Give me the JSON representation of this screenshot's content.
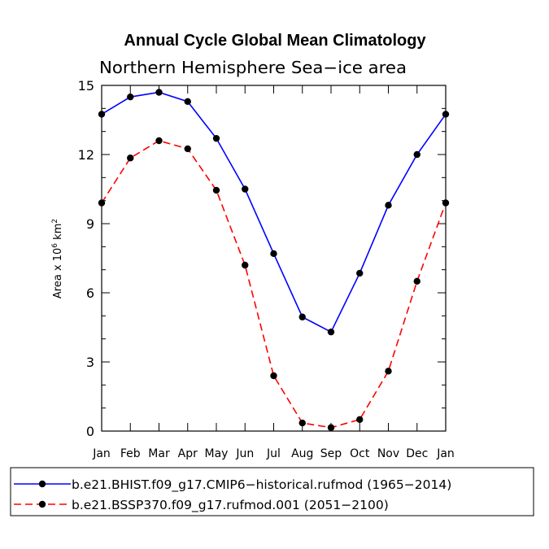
{
  "chart_data": {
    "type": "line",
    "title": "Annual Cycle Global Mean Climatology",
    "subtitle": "Northern Hemisphere Sea−ice area",
    "xlabel": "",
    "ylabel_prefix": "Area x 10",
    "ylabel_exp": "6",
    "ylabel_unit": " km",
    "ylabel_unit_exp": "2",
    "categories": [
      "Jan",
      "Feb",
      "Mar",
      "Apr",
      "May",
      "Jun",
      "Jul",
      "Aug",
      "Sep",
      "Oct",
      "Nov",
      "Dec",
      "Jan"
    ],
    "ylim": [
      0,
      15
    ],
    "yticks": [
      0,
      3,
      6,
      9,
      12,
      15
    ],
    "series": [
      {
        "name": "b.e21.BHIST.f09_g17.CMIP6−historical.rufmod (1965−2014)",
        "color": "#0000ff",
        "dash": "solid",
        "values": [
          13.75,
          14.5,
          14.7,
          14.3,
          12.7,
          10.5,
          7.7,
          4.95,
          4.3,
          6.85,
          9.8,
          12.0,
          13.75
        ]
      },
      {
        "name": "b.e21.BSSP370.f09_g17.rufmod.001 (2051−2100)",
        "color": "#ff0000",
        "dash": "dashed",
        "values": [
          9.9,
          11.85,
          12.6,
          12.25,
          10.45,
          7.2,
          2.4,
          0.35,
          0.15,
          0.5,
          2.6,
          6.5,
          9.9
        ]
      }
    ]
  }
}
